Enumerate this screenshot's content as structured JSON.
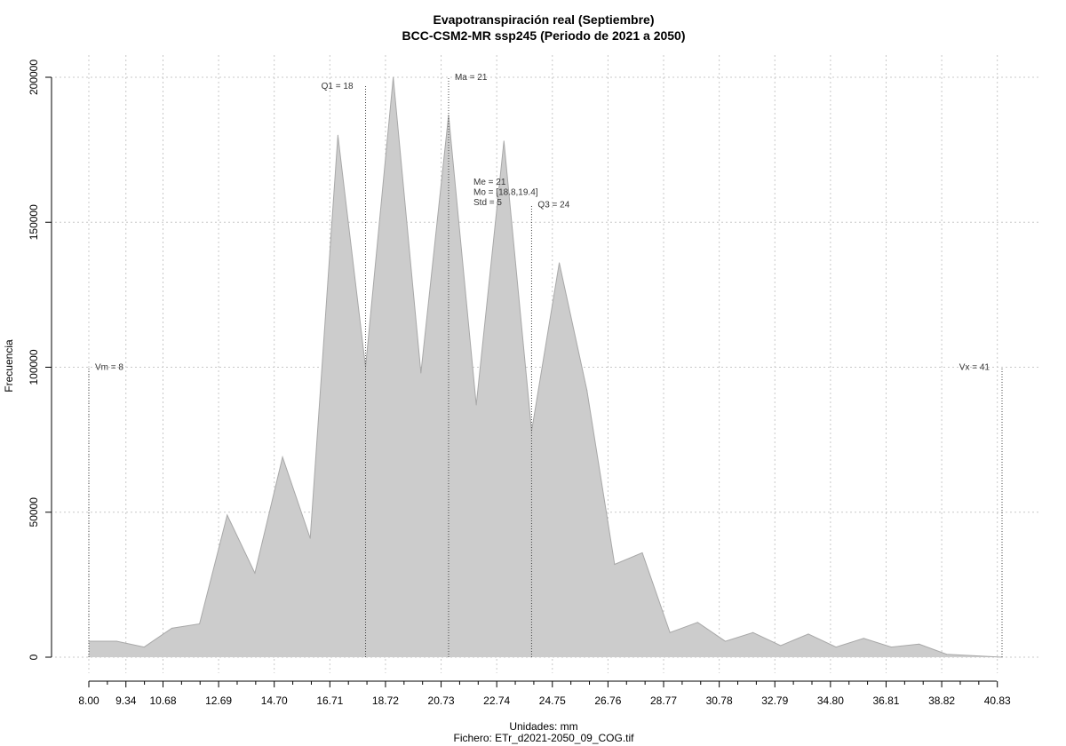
{
  "chart_data": {
    "type": "area",
    "title": "Evapotranspiración real (Septiembre)",
    "subtitle": "BCC-CSM2-MR ssp245 (Periodo de 2021 a 2050)",
    "xlabel": "Unidades: mm",
    "caption": "Fichero: ETr_d2021-2050_09_COG.tif",
    "ylabel": "Frecuencia",
    "xlim": [
      8.0,
      41.0
    ],
    "ylim": [
      0,
      200000
    ],
    "x_tick_labels": [
      "8.00",
      "9.34",
      "10.68",
      "12.69",
      "14.70",
      "16.71",
      "18.72",
      "20.73",
      "22.74",
      "24.75",
      "26.76",
      "28.77",
      "30.78",
      "32.79",
      "34.80",
      "36.81",
      "38.82",
      "40.83"
    ],
    "x_tick_values": [
      8.0,
      9.34,
      10.68,
      12.69,
      14.7,
      16.71,
      18.72,
      20.73,
      22.74,
      24.75,
      26.76,
      28.77,
      30.78,
      32.79,
      34.8,
      36.81,
      38.82,
      40.83
    ],
    "x_minor_ticks": [
      8.67,
      10.01,
      11.35,
      12.02,
      13.36,
      14.03,
      15.37,
      16.04,
      17.38,
      18.05,
      19.39,
      20.06,
      21.4,
      22.07,
      23.41,
      24.08,
      25.42,
      26.09,
      27.43,
      28.1,
      29.44,
      30.11,
      31.45,
      32.12,
      33.46,
      34.13,
      35.47,
      36.14,
      37.48,
      38.15,
      39.49,
      40.16
    ],
    "y_tick_labels": [
      "0",
      "50000",
      "100000",
      "150000",
      "200000"
    ],
    "y_tick_values": [
      0,
      50000,
      100000,
      150000,
      200000
    ],
    "grid": true,
    "fill_color": "#cccccc",
    "line_color": "#a8a8a8",
    "x": [
      8.0,
      9.0,
      10.0,
      11.0,
      12.0,
      13.0,
      14.0,
      15.0,
      16.0,
      17.0,
      18.0,
      19.0,
      20.0,
      21.0,
      22.0,
      23.0,
      24.0,
      25.0,
      26.0,
      27.0,
      28.0,
      29.0,
      30.0,
      31.0,
      32.0,
      33.0,
      34.0,
      35.0,
      36.0,
      37.0,
      38.0,
      39.0,
      40.0,
      41.0
    ],
    "y": [
      5500,
      5500,
      3500,
      10000,
      11500,
      49000,
      29000,
      69000,
      41000,
      180000,
      100000,
      200000,
      98000,
      187000,
      87000,
      178000,
      78000,
      136000,
      92000,
      32000,
      36000,
      8500,
      12000,
      5500,
      8500,
      4000,
      8000,
      3500,
      6500,
      3500,
      4500,
      1000,
      500,
      0
    ],
    "annotations": [
      {
        "label": "Vm = 8",
        "x": 8.0,
        "line_top": 100000,
        "anchor": "start"
      },
      {
        "label": "Q1 = 18",
        "x": 18.0,
        "line_top": 197000,
        "anchor": "end"
      },
      {
        "label": "Ma = 21",
        "x": 21.0,
        "line_top": 200000,
        "anchor": "start"
      },
      {
        "label": "Q3 = 24",
        "x": 24.0,
        "line_top": 156000,
        "anchor": "start"
      },
      {
        "label": "Vx = 41",
        "x": 41.0,
        "line_top": 100000,
        "anchor": "end"
      }
    ],
    "stats_block": [
      "Me = 21",
      "Mo = [18.8,19.4]",
      "Std = 5"
    ],
    "stats_anchor": {
      "x": 21.9,
      "y": 163000
    }
  }
}
